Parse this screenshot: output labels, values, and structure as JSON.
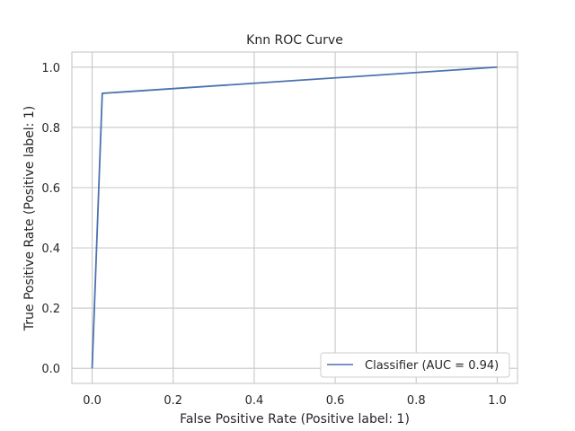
{
  "chart_data": {
    "type": "line",
    "title": "Knn ROC Curve",
    "xlabel": "False Positive Rate (Positive label: 1)",
    "ylabel": "True Positive Rate (Positive label: 1)",
    "xlim": [
      -0.05,
      1.05
    ],
    "ylim": [
      -0.05,
      1.05
    ],
    "xticks": [
      "0.0",
      "0.2",
      "0.4",
      "0.6",
      "0.8",
      "1.0"
    ],
    "yticks": [
      "0.0",
      "0.2",
      "0.4",
      "0.6",
      "0.8",
      "1.0"
    ],
    "grid": true,
    "legend_position": "bottom-right",
    "colors": {
      "series": "#4c72b0",
      "grid": "#cccccc",
      "frame": "#cccccc",
      "text": "#262626"
    },
    "series": [
      {
        "name": "Classifier (AUC = 0.94)",
        "x": [
          0.0,
          0.025,
          1.0
        ],
        "y": [
          0.0,
          0.913,
          1.0
        ]
      }
    ]
  }
}
